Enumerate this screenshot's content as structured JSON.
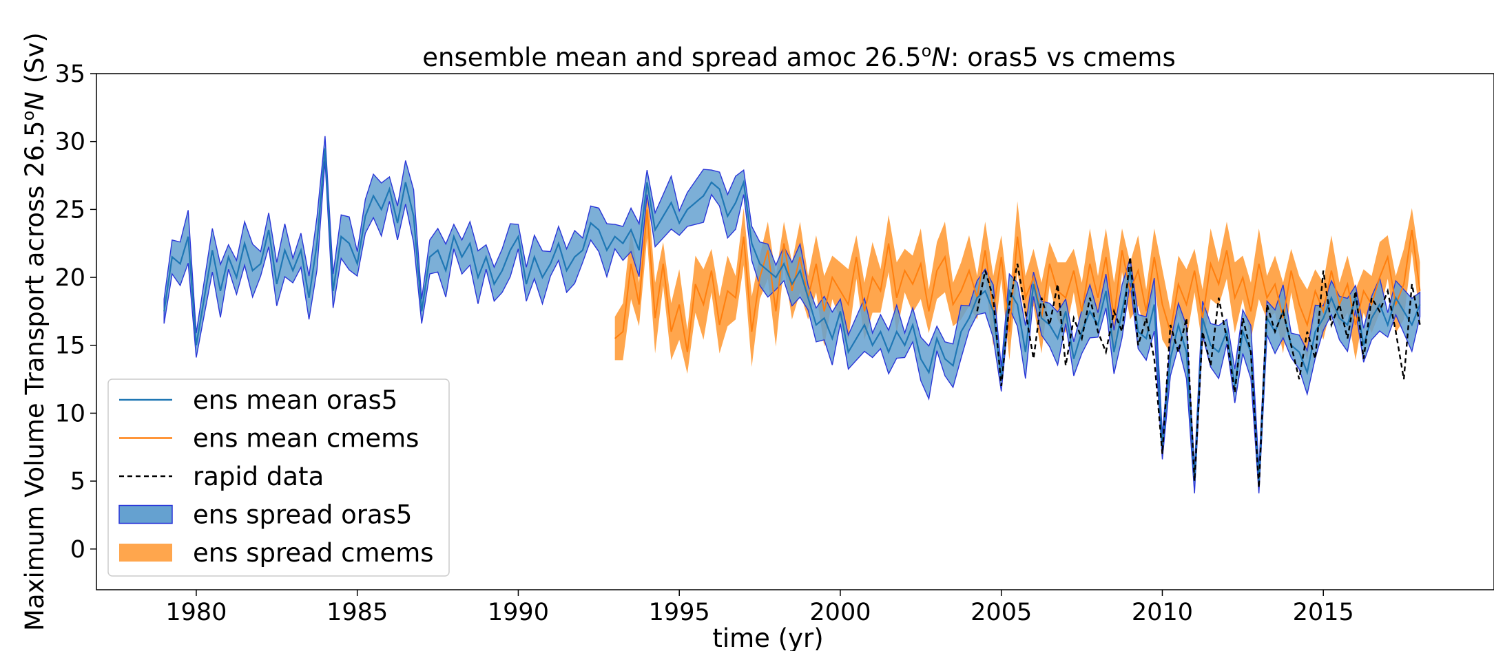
{
  "chart_data": {
    "type": "line",
    "title_prefix": "ensemble mean and spread amoc 26.5",
    "title_sup": "o",
    "title_italic": "N",
    "title_suffix": ": oras5 vs cmems",
    "xlabel": "time (yr)",
    "ylabel_prefix": "Maximum Volume Transport across 26.5",
    "ylabel_sup": "o",
    "ylabel_italic": "N",
    "ylabel_suffix": " (Sv)",
    "xlim": [
      1976.9,
      2020.3
    ],
    "ylim": [
      -3,
      35
    ],
    "xticks": [
      1980,
      1985,
      1990,
      1995,
      2000,
      2005,
      2010,
      2015
    ],
    "yticks": [
      0,
      5,
      10,
      15,
      20,
      25,
      30,
      35
    ],
    "legend_position": "lower-left",
    "legend": [
      {
        "label": "ens mean oras5",
        "kind": "line",
        "color": "#1f77b4"
      },
      {
        "label": "ens mean cmems",
        "kind": "line",
        "color": "#ff7f0e"
      },
      {
        "label": "rapid data",
        "kind": "dashed",
        "color": "#000000"
      },
      {
        "label": "ens spread oras5",
        "kind": "patch",
        "color": "#65a1d0",
        "edge": "#2a36d8"
      },
      {
        "label": "ens spread cmems",
        "kind": "patch",
        "color": "#ffa64d"
      }
    ],
    "series": [
      {
        "name": "ens mean oras5",
        "color": "#1f77b4",
        "x": [
          1979.0,
          1979.25,
          1979.5,
          1979.75,
          1980.0,
          1980.25,
          1980.5,
          1980.75,
          1981.0,
          1981.25,
          1981.5,
          1981.75,
          1982.0,
          1982.25,
          1982.5,
          1982.75,
          1983.0,
          1983.25,
          1983.5,
          1983.75,
          1984.0,
          1984.25,
          1984.5,
          1984.75,
          1985.0,
          1985.25,
          1985.5,
          1985.75,
          1986.0,
          1986.25,
          1986.5,
          1986.75,
          1987.0,
          1987.25,
          1987.5,
          1987.75,
          1988.0,
          1988.25,
          1988.5,
          1988.75,
          1989.0,
          1989.25,
          1989.5,
          1989.75,
          1990.0,
          1990.25,
          1990.5,
          1990.75,
          1991.0,
          1991.25,
          1991.5,
          1991.75,
          1992.0,
          1992.25,
          1992.5,
          1992.75,
          1993.0,
          1993.25,
          1993.5,
          1993.75,
          1994.0,
          1994.25,
          1994.5,
          1994.75,
          1995.0,
          1995.25,
          1995.5,
          1995.75,
          1996.0,
          1996.25,
          1996.5,
          1996.75,
          1997.0,
          1997.25,
          1997.5,
          1997.75,
          1998.0,
          1998.25,
          1998.5,
          1998.75,
          1999.0,
          1999.25,
          1999.5,
          1999.75,
          2000.0,
          2000.25,
          2000.5,
          2000.75,
          2001.0,
          2001.25,
          2001.5,
          2001.75,
          2002.0,
          2002.25,
          2002.5,
          2002.75,
          2003.0,
          2003.25,
          2003.5,
          2003.75,
          2004.0,
          2004.25,
          2004.5,
          2004.75,
          2005.0,
          2005.25,
          2005.5,
          2005.75,
          2006.0,
          2006.25,
          2006.5,
          2006.75,
          2007.0,
          2007.25,
          2007.5,
          2007.75,
          2008.0,
          2008.25,
          2008.5,
          2008.75,
          2009.0,
          2009.25,
          2009.5,
          2009.75,
          2010.0,
          2010.25,
          2010.5,
          2010.75,
          2011.0,
          2011.25,
          2011.5,
          2011.75,
          2012.0,
          2012.25,
          2012.5,
          2012.75,
          2013.0,
          2013.25,
          2013.5,
          2013.75,
          2014.0,
          2014.25,
          2014.5,
          2014.75,
          2015.0,
          2015.25,
          2015.5,
          2015.75,
          2016.0,
          2016.25,
          2016.5,
          2016.75,
          2017.0,
          2017.25,
          2017.5,
          2017.75,
          2018.0
        ],
        "values": [
          17.5,
          21.5,
          21.0,
          23.0,
          15.0,
          18.5,
          22.0,
          19.0,
          21.5,
          20.0,
          22.5,
          20.5,
          21.0,
          23.5,
          19.5,
          22.0,
          20.5,
          22.0,
          18.5,
          22.5,
          29.5,
          19.0,
          23.0,
          22.5,
          21.0,
          24.5,
          26.0,
          25.0,
          26.5,
          24.0,
          27.0,
          24.5,
          17.5,
          21.5,
          22.0,
          20.5,
          23.0,
          21.5,
          22.5,
          20.0,
          21.5,
          19.5,
          20.5,
          22.0,
          23.0,
          19.5,
          21.5,
          20.0,
          21.0,
          22.5,
          20.5,
          21.5,
          22.0,
          24.0,
          23.5,
          22.0,
          23.0,
          22.5,
          23.5,
          22.0,
          27.0,
          23.5,
          24.5,
          25.5,
          24.0,
          25.0,
          25.5,
          26.0,
          27.0,
          26.5,
          24.5,
          25.5,
          27.0,
          22.5,
          21.0,
          20.5,
          20.0,
          21.0,
          19.5,
          20.5,
          18.5,
          16.5,
          17.0,
          15.5,
          17.5,
          14.5,
          15.5,
          16.5,
          15.0,
          16.0,
          14.5,
          16.0,
          15.0,
          16.5,
          14.0,
          13.0,
          15.5,
          14.0,
          13.5,
          16.0,
          17.0,
          18.5,
          19.0,
          17.5,
          12.5,
          19.0,
          18.0,
          14.5,
          19.5,
          17.0,
          16.5,
          15.5,
          17.5,
          14.0,
          16.0,
          17.5,
          16.5,
          19.0,
          14.5,
          17.5,
          20.5,
          16.0,
          15.5,
          18.0,
          7.5,
          14.0,
          16.5,
          14.5,
          5.0,
          17.0,
          15.0,
          14.5,
          16.0,
          12.0,
          16.0,
          14.5,
          5.0,
          17.0,
          16.0,
          17.5,
          15.0,
          14.5,
          13.0,
          16.0,
          17.0,
          18.5,
          17.0,
          16.5,
          18.5,
          15.0,
          17.0,
          18.0,
          16.5,
          18.5,
          17.5,
          16.5,
          18.0
        ]
      },
      {
        "name": "ens mean cmems",
        "color": "#ff7f0e",
        "x": [
          1993.0,
          1993.25,
          1993.5,
          1993.75,
          1994.0,
          1994.25,
          1994.5,
          1994.75,
          1995.0,
          1995.25,
          1995.5,
          1995.75,
          1996.0,
          1996.25,
          1996.5,
          1996.75,
          1997.0,
          1997.25,
          1997.5,
          1997.75,
          1998.0,
          1998.25,
          1998.5,
          1998.75,
          1999.0,
          1999.25,
          1999.5,
          1999.75,
          2000.0,
          2000.25,
          2000.5,
          2000.75,
          2001.0,
          2001.25,
          2001.5,
          2001.75,
          2002.0,
          2002.25,
          2002.5,
          2002.75,
          2003.0,
          2003.25,
          2003.5,
          2003.75,
          2004.0,
          2004.25,
          2004.5,
          2004.75,
          2005.0,
          2005.25,
          2005.5,
          2005.75,
          2006.0,
          2006.25,
          2006.5,
          2006.75,
          2007.0,
          2007.25,
          2007.5,
          2007.75,
          2008.0,
          2008.25,
          2008.5,
          2008.75,
          2009.0,
          2009.25,
          2009.5,
          2009.75,
          2010.0,
          2010.25,
          2010.5,
          2010.75,
          2011.0,
          2011.25,
          2011.5,
          2011.75,
          2012.0,
          2012.25,
          2012.5,
          2012.75,
          2013.0,
          2013.25,
          2013.5,
          2013.75,
          2014.0,
          2014.25,
          2014.5,
          2014.75,
          2015.0,
          2015.25,
          2015.5,
          2015.75,
          2016.0,
          2016.25,
          2016.5,
          2016.75,
          2017.0,
          2017.25,
          2017.5,
          2017.75,
          2018.0
        ],
        "values": [
          15.5,
          16.0,
          21.0,
          18.0,
          25.0,
          17.0,
          21.0,
          16.0,
          18.0,
          14.5,
          19.5,
          18.0,
          20.5,
          16.5,
          19.0,
          18.5,
          23.0,
          16.0,
          20.0,
          22.0,
          17.5,
          22.5,
          19.0,
          21.5,
          18.5,
          21.0,
          17.5,
          20.0,
          19.0,
          18.0,
          21.5,
          17.5,
          20.0,
          19.0,
          22.5,
          18.5,
          20.5,
          19.5,
          21.0,
          17.5,
          20.5,
          21.5,
          18.0,
          19.0,
          20.5,
          18.5,
          22.0,
          17.5,
          21.5,
          16.0,
          23.0,
          18.5,
          20.0,
          17.0,
          21.0,
          19.0,
          18.5,
          20.5,
          17.5,
          21.0,
          18.5,
          21.5,
          17.0,
          22.0,
          19.0,
          20.5,
          17.5,
          21.5,
          18.0,
          16.0,
          19.5,
          18.0,
          20.5,
          17.0,
          21.0,
          19.5,
          22.0,
          18.5,
          20.0,
          17.5,
          21.0,
          18.5,
          19.5,
          17.0,
          20.5,
          18.0,
          16.5,
          19.0,
          17.5,
          20.5,
          18.0,
          19.5,
          16.5,
          19.0,
          18.0,
          20.0,
          21.5,
          18.0,
          19.5,
          23.5,
          19.0
        ]
      },
      {
        "name": "rapid data",
        "color": "#000000",
        "x": [
          2004.25,
          2004.5,
          2004.75,
          2005.0,
          2005.25,
          2005.5,
          2005.75,
          2006.0,
          2006.25,
          2006.5,
          2006.75,
          2007.0,
          2007.25,
          2007.5,
          2007.75,
          2008.0,
          2008.25,
          2008.5,
          2008.75,
          2009.0,
          2009.25,
          2009.5,
          2009.75,
          2010.0,
          2010.25,
          2010.5,
          2010.75,
          2011.0,
          2011.25,
          2011.5,
          2011.75,
          2012.0,
          2012.25,
          2012.5,
          2012.75,
          2013.0,
          2013.25,
          2013.5,
          2013.75,
          2014.0,
          2014.25,
          2014.5,
          2014.75,
          2015.0,
          2015.25,
          2015.5,
          2015.75,
          2016.0,
          2016.25,
          2016.5,
          2016.75,
          2017.0,
          2017.25,
          2017.5,
          2017.75,
          2018.0
        ],
        "values": [
          17.5,
          20.5,
          18.5,
          12.0,
          18.0,
          21.0,
          17.5,
          14.0,
          18.5,
          16.5,
          19.5,
          13.5,
          17.0,
          15.5,
          18.5,
          16.0,
          14.5,
          17.5,
          16.0,
          21.5,
          15.0,
          17.0,
          14.0,
          7.0,
          16.5,
          14.5,
          17.0,
          5.0,
          16.0,
          13.5,
          18.5,
          15.5,
          11.5,
          17.0,
          14.5,
          4.5,
          18.0,
          16.0,
          17.5,
          15.0,
          12.5,
          16.0,
          14.0,
          20.5,
          16.5,
          18.0,
          15.5,
          19.0,
          14.0,
          18.5,
          17.5,
          19.0,
          16.0,
          12.5,
          19.5,
          16.5
        ]
      }
    ]
  }
}
